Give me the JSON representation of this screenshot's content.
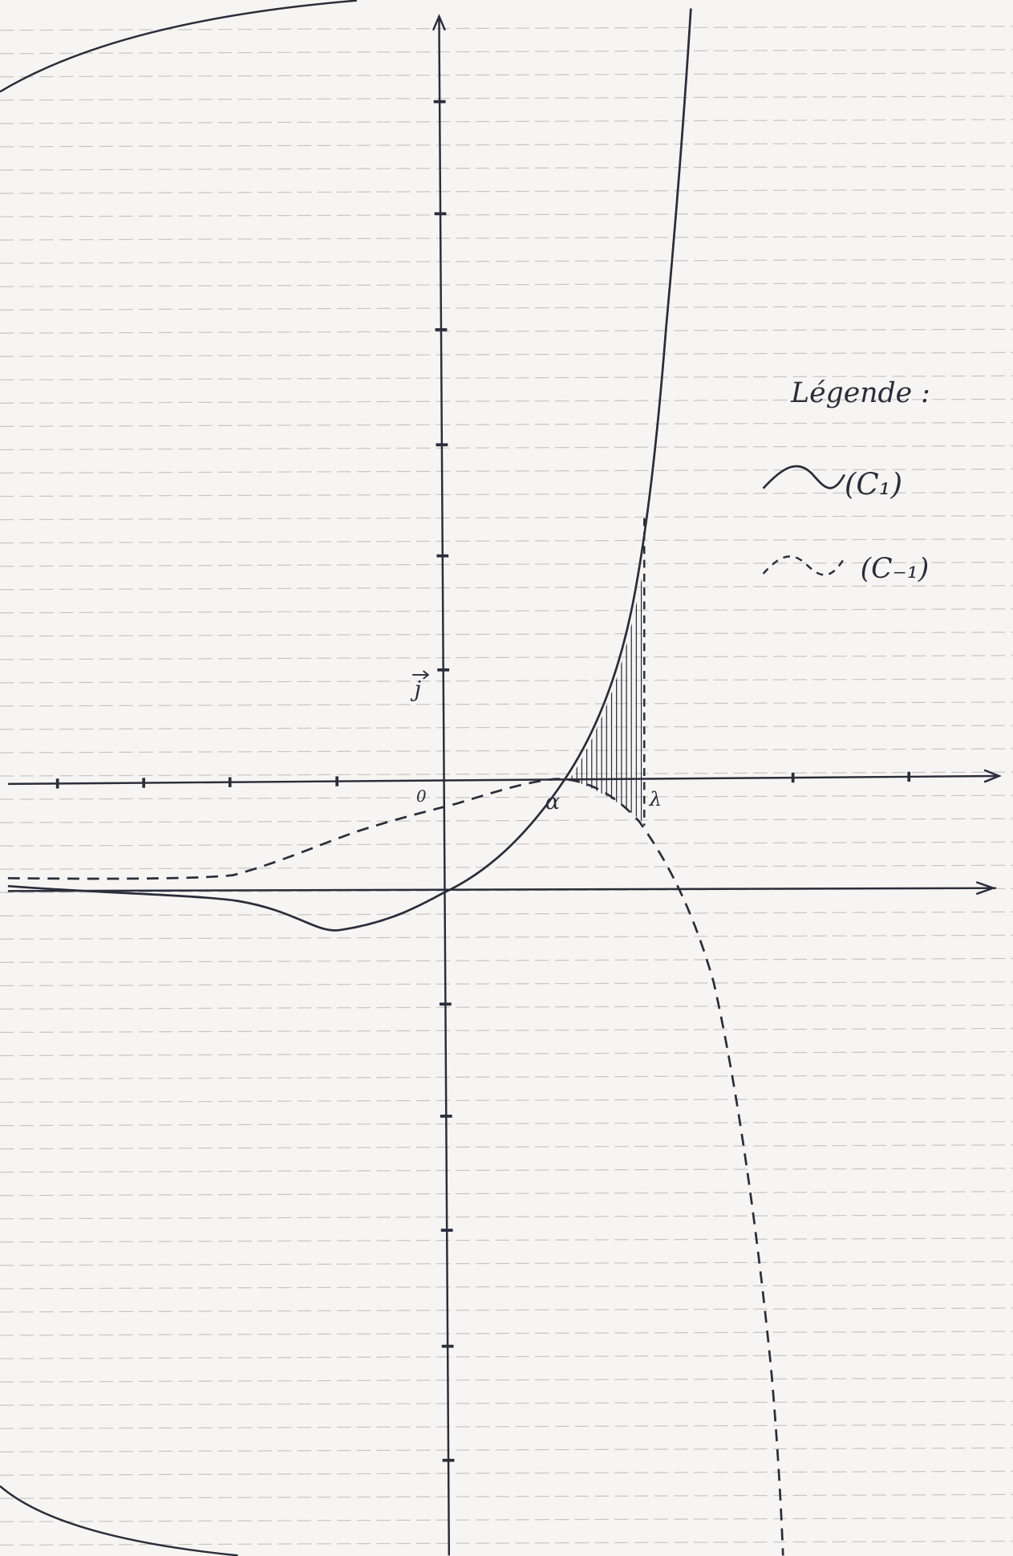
{
  "legend": {
    "title": "Légende :",
    "items": [
      {
        "label": "(C₁)"
      },
      {
        "label": "(C₋₁)"
      }
    ]
  },
  "axes": {
    "origin": "0",
    "j": "j",
    "alpha": "α",
    "lambda": "λ"
  }
}
